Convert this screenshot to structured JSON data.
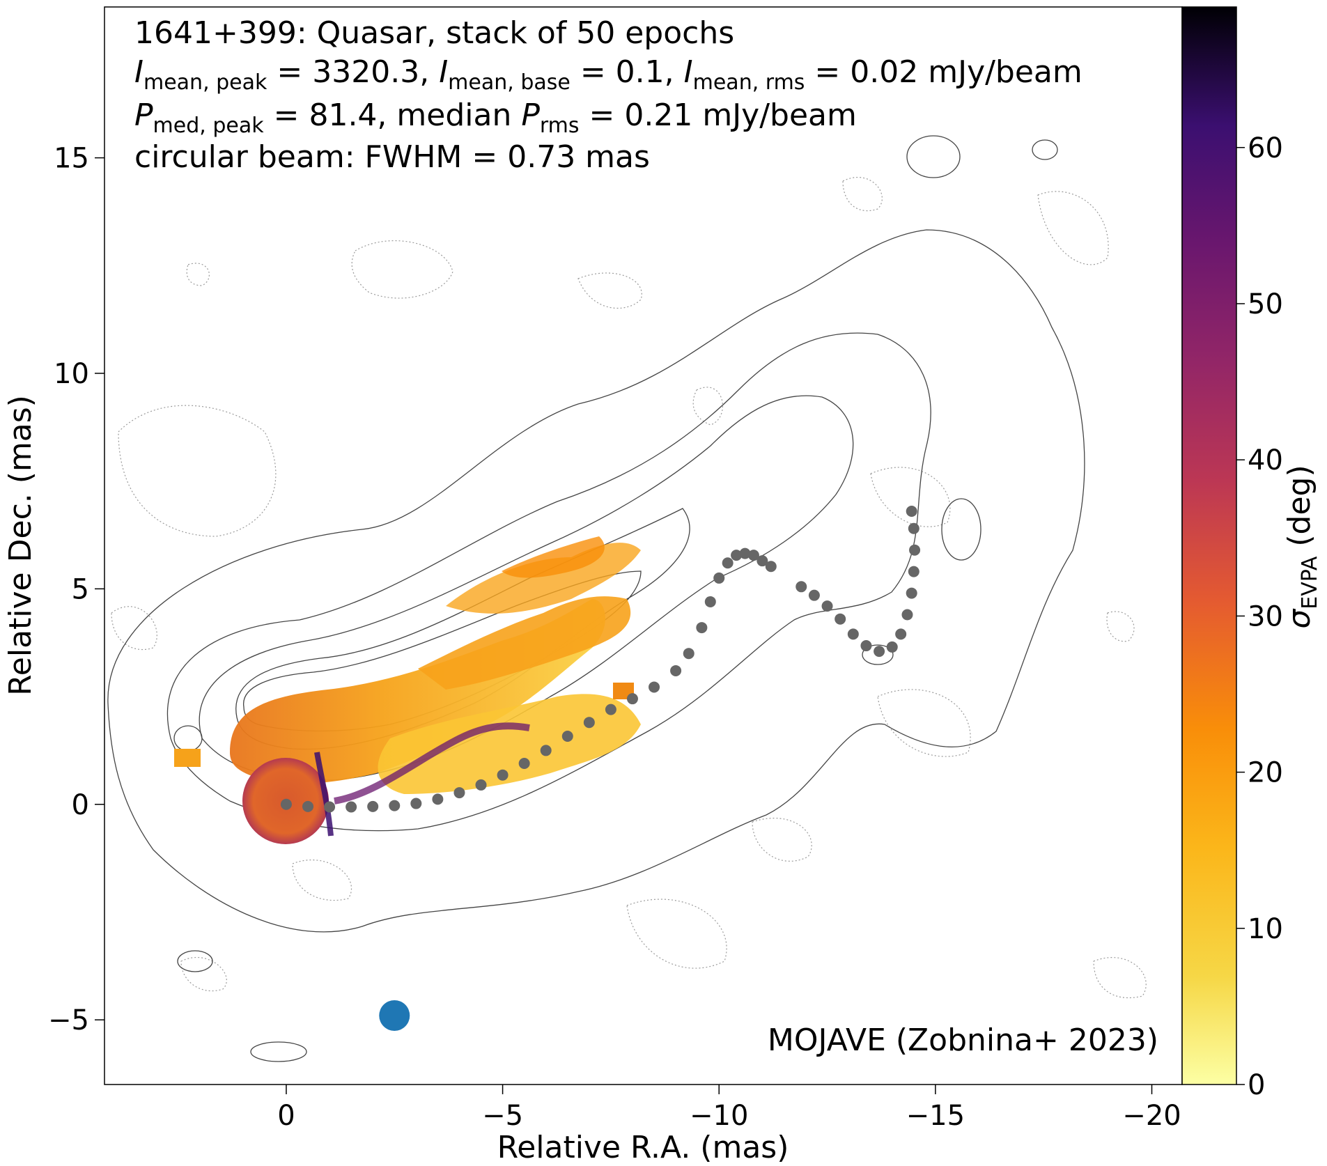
{
  "chart_data": {
    "type": "heatmap",
    "title": "1641+399: Quasar, stack of 50 epochs",
    "info_lines": [
      {
        "segments": [
          {
            "text": "I",
            "style": "italic"
          },
          {
            "text": "mean, peak",
            "style": "sub"
          },
          {
            "text": " = 3320.3, ",
            "style": "normal"
          },
          {
            "text": "I",
            "style": "italic"
          },
          {
            "text": "mean, base",
            "style": "sub"
          },
          {
            "text": " = 0.1, ",
            "style": "normal"
          },
          {
            "text": "I",
            "style": "italic"
          },
          {
            "text": "mean, rms",
            "style": "sub"
          },
          {
            "text": " = 0.02 mJy/beam",
            "style": "normal"
          }
        ]
      },
      {
        "segments": [
          {
            "text": "P",
            "style": "italic"
          },
          {
            "text": "med, peak",
            "style": "sub"
          },
          {
            "text": " = 81.4, median ",
            "style": "normal"
          },
          {
            "text": "P",
            "style": "italic"
          },
          {
            "text": "rms",
            "style": "sub"
          },
          {
            "text": " = 0.21 mJy/beam",
            "style": "normal"
          }
        ]
      },
      {
        "segments": [
          {
            "text": "circular beam: FWHM = 0.73 mas",
            "style": "normal"
          }
        ]
      }
    ],
    "credit": "MOJAVE (Zobnina+ 2023)",
    "xlabel": "Relative R.A. (mas)",
    "ylabel": "Relative Dec. (mas)",
    "xlim": [
      4.2,
      -20.7
    ],
    "ylim": [
      -6.5,
      18.5
    ],
    "xticks": [
      0,
      -5,
      -10,
      -15,
      -20
    ],
    "xtick_labels": [
      "0",
      "−5",
      "−10",
      "−15",
      "−20"
    ],
    "yticks": [
      -5,
      0,
      5,
      10,
      15
    ],
    "ytick_labels": [
      "−5",
      "0",
      "5",
      "10",
      "15"
    ],
    "colorbar": {
      "label_symbol": "σ",
      "label_sub": "EVPA",
      "label_unit": " (deg)",
      "range": [
        0,
        69
      ],
      "ticks": [
        0,
        10,
        20,
        30,
        40,
        50,
        60
      ],
      "tick_labels": [
        "0",
        "10",
        "20",
        "30",
        "40",
        "50",
        "60"
      ],
      "colormap": "inferno_r"
    },
    "beam": {
      "x": -2.5,
      "y": -4.9,
      "fwhm": 0.73,
      "color": "#1f77b4"
    },
    "ridgeline": {
      "color": "#666666",
      "points": [
        [
          0.0,
          0.0
        ],
        [
          -0.5,
          -0.05
        ],
        [
          -1.0,
          -0.06
        ],
        [
          -1.5,
          -0.06
        ],
        [
          -2.0,
          -0.05
        ],
        [
          -2.5,
          -0.03
        ],
        [
          -3.0,
          0.02
        ],
        [
          -3.5,
          0.12
        ],
        [
          -4.0,
          0.27
        ],
        [
          -4.5,
          0.45
        ],
        [
          -5.0,
          0.68
        ],
        [
          -5.5,
          0.95
        ],
        [
          -6.0,
          1.25
        ],
        [
          -6.5,
          1.58
        ],
        [
          -7.0,
          1.9
        ],
        [
          -7.5,
          2.2
        ],
        [
          -8.0,
          2.45
        ],
        [
          -8.5,
          2.72
        ],
        [
          -9.0,
          3.1
        ],
        [
          -9.3,
          3.5
        ],
        [
          -9.6,
          4.1
        ],
        [
          -9.8,
          4.7
        ],
        [
          -10.0,
          5.25
        ],
        [
          -10.2,
          5.6
        ],
        [
          -10.4,
          5.78
        ],
        [
          -10.6,
          5.82
        ],
        [
          -10.8,
          5.78
        ],
        [
          -11.0,
          5.65
        ],
        [
          -11.2,
          5.52
        ],
        [
          -11.9,
          5.05
        ],
        [
          -12.2,
          4.85
        ],
        [
          -12.5,
          4.6
        ],
        [
          -12.8,
          4.3
        ],
        [
          -13.1,
          3.95
        ],
        [
          -13.4,
          3.68
        ],
        [
          -13.7,
          3.55
        ],
        [
          -14.0,
          3.65
        ],
        [
          -14.2,
          3.95
        ],
        [
          -14.35,
          4.4
        ],
        [
          -14.45,
          4.9
        ],
        [
          -14.5,
          5.4
        ],
        [
          -14.52,
          5.9
        ],
        [
          -14.5,
          6.4
        ],
        [
          -14.45,
          6.8
        ]
      ]
    }
  }
}
